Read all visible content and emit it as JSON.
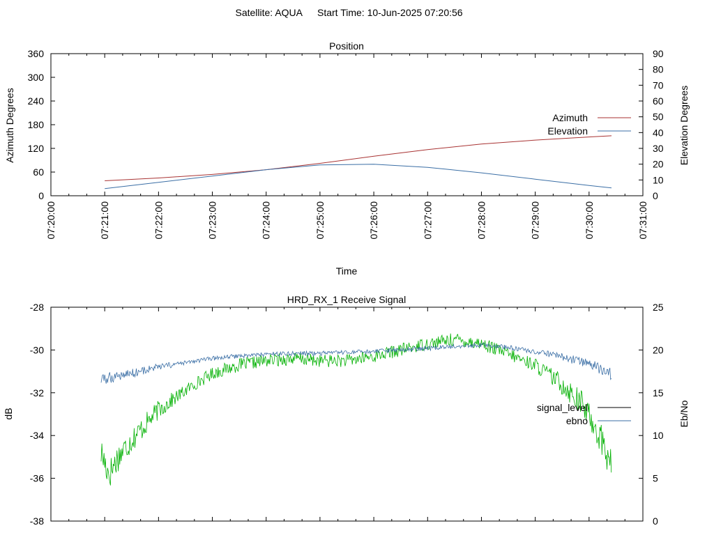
{
  "header": {
    "satellite_label": "Satellite: AQUA",
    "start_time_label": "Start Time: 10-Jun-2025 07:20:56"
  },
  "colors": {
    "azimuth": "#a83232",
    "elevation": "#3a6ea5",
    "signal_level": "#00b000",
    "ebno": "#3a6ea5",
    "legend_signal_level": "#000000"
  },
  "chart_data": [
    {
      "type": "line",
      "title": "Position",
      "xlabel": "Time",
      "ylabel": "Azimuth Degrees",
      "y2label": "Elevation Degrees",
      "x_tick_labels": [
        "07:20:00",
        "07:21:00",
        "07:22:00",
        "07:23:00",
        "07:24:00",
        "07:25:00",
        "07:26:00",
        "07:27:00",
        "07:28:00",
        "07:29:00",
        "07:30:00",
        "07:31:00"
      ],
      "xlim": [
        "07:20:00",
        "07:31:00"
      ],
      "ylim": [
        0,
        360
      ],
      "yticks": [
        0,
        60,
        120,
        180,
        240,
        300,
        360
      ],
      "y2lim": [
        0,
        90
      ],
      "y2ticks": [
        0,
        10,
        20,
        30,
        40,
        50,
        60,
        70,
        80,
        90
      ],
      "legend_position": "right",
      "series": [
        {
          "name": "Azimuth",
          "axis": "y",
          "color_key": "azimuth",
          "points": [
            [
              "07:21:00",
              38
            ],
            [
              "07:22:00",
              45
            ],
            [
              "07:23:00",
              54
            ],
            [
              "07:24:00",
              66
            ],
            [
              "07:25:00",
              82
            ],
            [
              "07:26:00",
              100
            ],
            [
              "07:27:00",
              117
            ],
            [
              "07:28:00",
              131
            ],
            [
              "07:29:00",
              141
            ],
            [
              "07:30:00",
              149
            ],
            [
              "07:30:25",
              152
            ]
          ]
        },
        {
          "name": "Elevation",
          "axis": "y2",
          "color_key": "elevation",
          "points": [
            [
              "07:21:00",
              4.5
            ],
            [
              "07:22:00",
              8.5
            ],
            [
              "07:23:00",
              12.5
            ],
            [
              "07:24:00",
              16.5
            ],
            [
              "07:25:00",
              19.5
            ],
            [
              "07:26:00",
              20
            ],
            [
              "07:27:00",
              18
            ],
            [
              "07:28:00",
              14.5
            ],
            [
              "07:29:00",
              10.5
            ],
            [
              "07:30:00",
              6.5
            ],
            [
              "07:30:25",
              5
            ]
          ]
        }
      ]
    },
    {
      "type": "line",
      "title": "HRD_RX_1 Receive Signal",
      "ylabel": "dB",
      "y2label": "Eb/No",
      "xlim": [
        "07:20:00",
        "07:31:00"
      ],
      "ylim": [
        -38,
        -28
      ],
      "yticks": [
        -38,
        -36,
        -34,
        -32,
        -30,
        -28
      ],
      "y2lim": [
        0,
        25
      ],
      "y2ticks": [
        0,
        5,
        10,
        15,
        20,
        25
      ],
      "legend_position": "right",
      "series": [
        {
          "name": "signal_level",
          "axis": "y",
          "color_key": "signal_level",
          "legend_color_key": "legend_signal_level",
          "points": [
            [
              "07:20:56",
              -34.8
            ],
            [
              "07:21:05",
              -35.8
            ],
            [
              "07:21:15",
              -35.0
            ],
            [
              "07:21:30",
              -34.2
            ],
            [
              "07:21:45",
              -33.5
            ],
            [
              "07:22:00",
              -32.8
            ],
            [
              "07:22:20",
              -32.2
            ],
            [
              "07:22:40",
              -31.6
            ],
            [
              "07:23:00",
              -31.1
            ],
            [
              "07:23:30",
              -30.7
            ],
            [
              "07:24:00",
              -30.5
            ],
            [
              "07:24:30",
              -30.4
            ],
            [
              "07:25:00",
              -30.5
            ],
            [
              "07:25:30",
              -30.5
            ],
            [
              "07:26:00",
              -30.3
            ],
            [
              "07:26:30",
              -30.0
            ],
            [
              "07:27:00",
              -29.7
            ],
            [
              "07:27:30",
              -29.5
            ],
            [
              "07:28:00",
              -29.7
            ],
            [
              "07:28:30",
              -30.2
            ],
            [
              "07:29:00",
              -30.7
            ],
            [
              "07:29:30",
              -31.6
            ],
            [
              "07:29:50",
              -32.4
            ],
            [
              "07:30:05",
              -33.4
            ],
            [
              "07:30:15",
              -34.3
            ],
            [
              "07:30:25",
              -35.5
            ]
          ]
        },
        {
          "name": "ebno",
          "axis": "y2",
          "color_key": "ebno",
          "points": [
            [
              "07:20:56",
              16.5
            ],
            [
              "07:21:15",
              17.0
            ],
            [
              "07:21:30",
              17.3
            ],
            [
              "07:22:00",
              18.0
            ],
            [
              "07:22:30",
              18.5
            ],
            [
              "07:23:00",
              19.0
            ],
            [
              "07:23:30",
              19.3
            ],
            [
              "07:24:00",
              19.5
            ],
            [
              "07:24:30",
              19.6
            ],
            [
              "07:25:00",
              19.6
            ],
            [
              "07:25:30",
              19.7
            ],
            [
              "07:26:00",
              19.8
            ],
            [
              "07:26:30",
              20.0
            ],
            [
              "07:27:00",
              20.2
            ],
            [
              "07:27:30",
              20.4
            ],
            [
              "07:28:00",
              20.6
            ],
            [
              "07:28:30",
              20.3
            ],
            [
              "07:29:00",
              19.8
            ],
            [
              "07:29:30",
              19.2
            ],
            [
              "07:30:00",
              18.4
            ],
            [
              "07:30:25",
              17.2
            ]
          ]
        }
      ]
    }
  ]
}
